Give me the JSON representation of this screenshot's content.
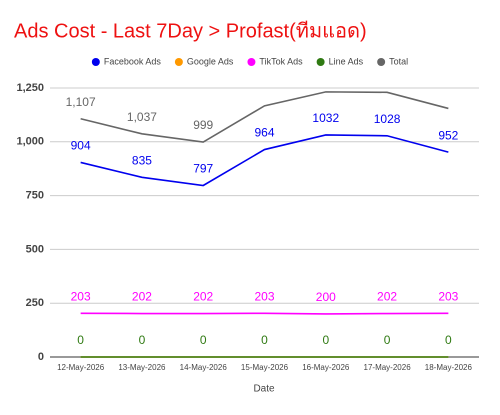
{
  "chart_data": {
    "type": "line",
    "title": "Ads Cost - Last 7Day > Profast(ทีมแอด)",
    "x_label": "Date",
    "categories": [
      "12-May-2026",
      "13-May-2026",
      "14-May-2026",
      "15-May-2026",
      "16-May-2026",
      "17-May-2026",
      "18-May-2026"
    ],
    "series": [
      {
        "name": "Facebook Ads",
        "color": "#0000ee",
        "values": [
          904,
          835,
          797,
          964,
          1032,
          1028,
          952
        ],
        "data_labels": true
      },
      {
        "name": "Google Ads",
        "color": "#ff9900",
        "values": [
          0,
          0,
          0,
          0,
          0,
          0,
          0
        ],
        "data_labels": false
      },
      {
        "name": "TikTok Ads",
        "color": "#ff00ff",
        "values": [
          203,
          202,
          202,
          203,
          200,
          202,
          203
        ],
        "data_labels": true
      },
      {
        "name": "Line Ads",
        "color": "#2f7a12",
        "values": [
          0,
          0,
          0,
          0,
          0,
          0,
          0
        ],
        "data_labels": true
      },
      {
        "name": "Total",
        "color": "#666666",
        "values": [
          1107,
          1037,
          999,
          1167,
          1232,
          1230,
          1155
        ],
        "value_labels": [
          "1,107",
          "1,037",
          "999",
          null,
          null,
          null,
          null
        ]
      }
    ],
    "ylim": [
      0,
      1250
    ],
    "yticks": [
      0,
      250,
      500,
      750,
      {
        "value": 1000,
        "label": "1,000"
      },
      {
        "value": 1250,
        "label": "1,250"
      }
    ],
    "grid": true,
    "legend": "top"
  }
}
